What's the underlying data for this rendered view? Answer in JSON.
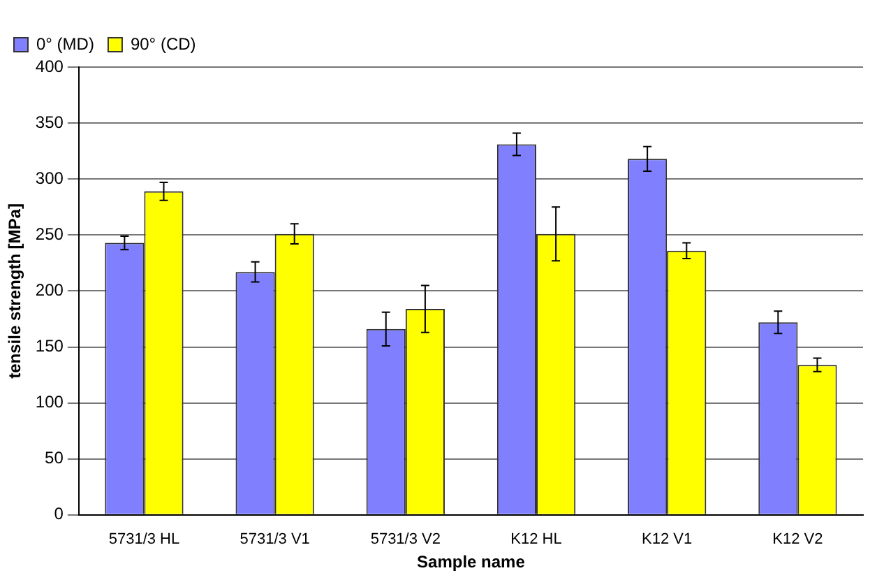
{
  "chart_data": {
    "type": "bar",
    "xlabel": "Sample name",
    "ylabel": "tensile strength [MPa]",
    "categories": [
      "5731/3 HL",
      "5731/3 V1",
      "5731/3 V2",
      "K12 HL",
      "K12 V1",
      "K12 V2"
    ],
    "series": [
      {
        "name": "0° (MD)",
        "color": "#8080ff",
        "values": [
          243,
          217,
          166,
          331,
          318,
          172
        ],
        "errors": [
          6,
          9,
          15,
          10,
          11,
          10
        ]
      },
      {
        "name": "90° (CD)",
        "color": "#ffff00",
        "values": [
          289,
          251,
          184,
          251,
          236,
          134
        ],
        "errors": [
          8,
          9,
          21,
          24,
          7,
          6
        ]
      }
    ],
    "ylim": [
      0,
      400
    ],
    "yticks": [
      0,
      50,
      100,
      150,
      200,
      250,
      300,
      350,
      400
    ],
    "grid": "y",
    "legend": "top left"
  }
}
